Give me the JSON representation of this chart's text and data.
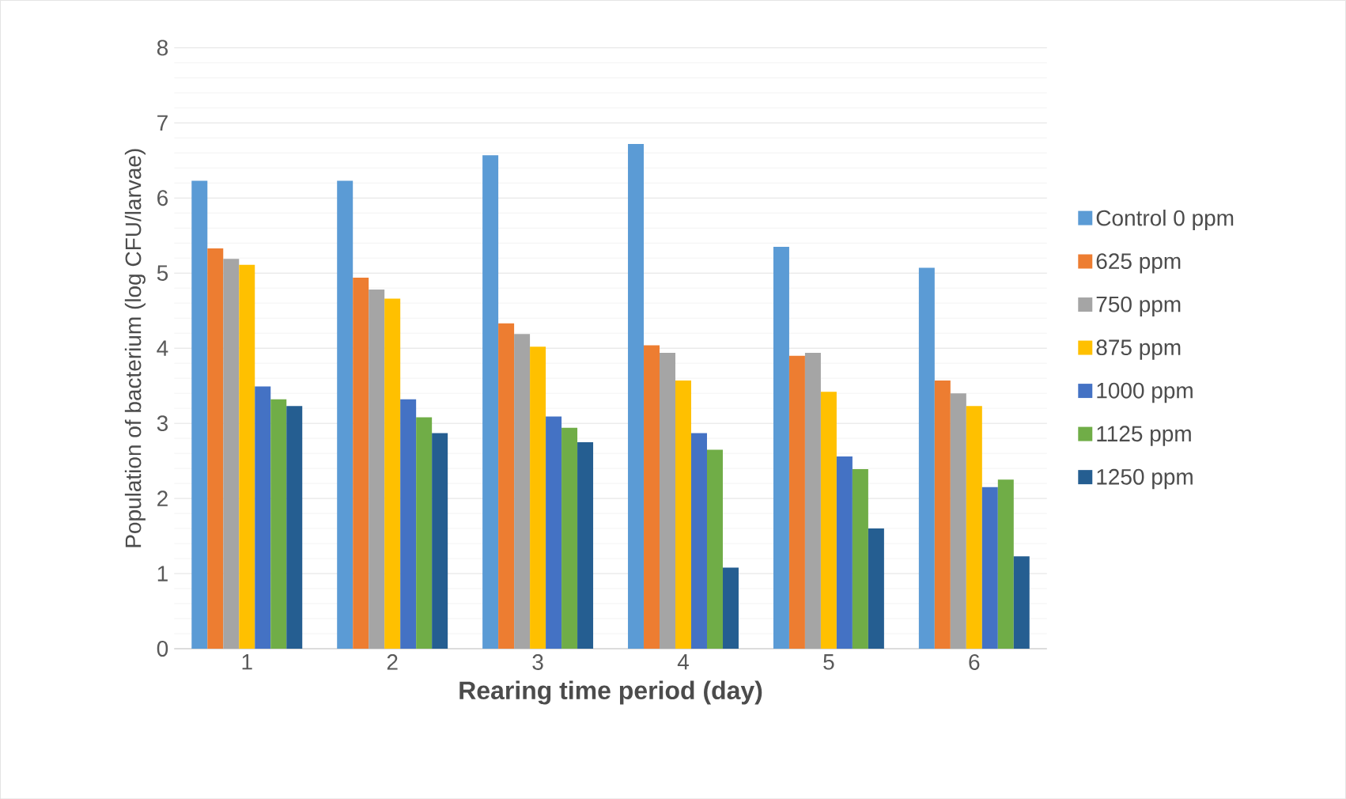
{
  "chart_data": {
    "type": "bar",
    "xlabel": "Rearing time period (day)",
    "ylabel": "Population of bacterium (log CFU/larvae)",
    "categories": [
      "1",
      "2",
      "3",
      "4",
      "5",
      "6"
    ],
    "ylim": [
      0,
      8
    ],
    "yticks": [
      0,
      1,
      2,
      3,
      4,
      5,
      6,
      7,
      8
    ],
    "grid": "y",
    "legend": "right",
    "series": [
      {
        "name": "Control 0 ppm",
        "color": "#5b9bd5",
        "values": [
          6.23,
          6.23,
          6.57,
          6.72,
          5.35,
          5.07
        ]
      },
      {
        "name": "625 ppm",
        "color": "#ed7d31",
        "values": [
          5.33,
          4.94,
          4.33,
          4.04,
          3.9,
          3.57
        ]
      },
      {
        "name": "750 ppm",
        "color": "#a5a5a5",
        "values": [
          5.19,
          4.78,
          4.19,
          3.94,
          3.94,
          3.4
        ]
      },
      {
        "name": "875 ppm",
        "color": "#ffc000",
        "values": [
          5.11,
          4.66,
          4.02,
          3.57,
          3.42,
          3.23
        ]
      },
      {
        "name": "1000 ppm",
        "color": "#4472c4",
        "values": [
          3.49,
          3.32,
          3.09,
          2.87,
          2.56,
          2.15
        ]
      },
      {
        "name": "1125 ppm",
        "color": "#70ad47",
        "values": [
          3.32,
          3.08,
          2.94,
          2.65,
          2.39,
          2.25
        ]
      },
      {
        "name": "1250 ppm",
        "color": "#255e91",
        "values": [
          3.23,
          2.87,
          2.75,
          1.08,
          1.6,
          1.23
        ]
      }
    ]
  }
}
